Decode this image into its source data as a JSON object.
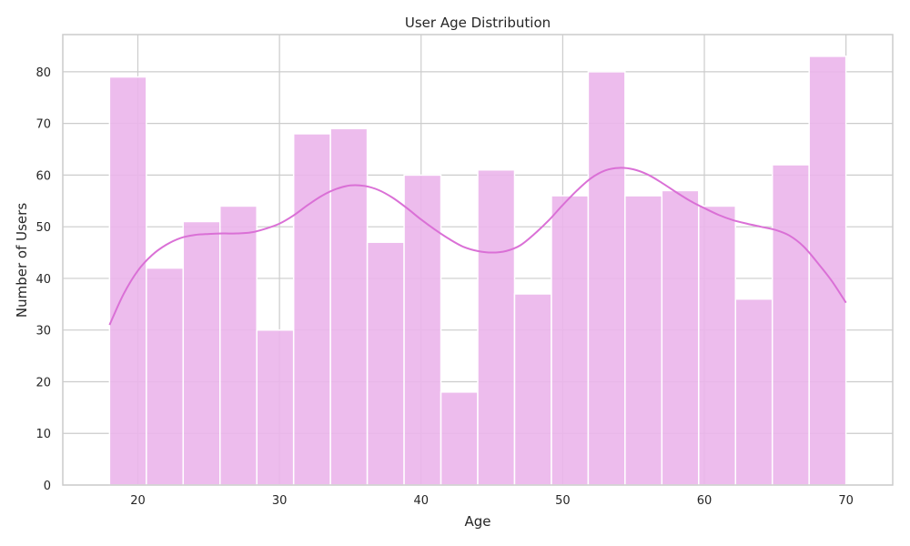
{
  "chart_data": {
    "type": "bar",
    "title": "User Age Distribution",
    "xlabel": "Age",
    "ylabel": "Number of Users",
    "xlim": [
      14.7,
      73.3
    ],
    "ylim": [
      0,
      87.2
    ],
    "xticks": [
      20,
      30,
      40,
      50,
      60,
      70
    ],
    "yticks": [
      0,
      10,
      20,
      30,
      40,
      50,
      60,
      70,
      80
    ],
    "bins": {
      "edges": [
        18,
        20.6,
        23.2,
        25.8,
        28.4,
        31,
        33.6,
        36.2,
        38.8,
        41.4,
        44,
        46.6,
        49.2,
        51.8,
        54.4,
        57,
        59.6,
        62.2,
        64.8,
        67.4,
        70
      ],
      "counts": [
        79,
        42,
        51,
        54,
        30,
        68,
        69,
        47,
        60,
        18,
        61,
        37,
        56,
        80,
        56,
        57,
        54,
        36,
        62,
        83
      ]
    },
    "kde": {
      "x": [
        18,
        19,
        20,
        21,
        22,
        23,
        24,
        25,
        26,
        27,
        28,
        29,
        30,
        31,
        32,
        33,
        34,
        35,
        36,
        37,
        38,
        39,
        40,
        41,
        42,
        43,
        44,
        45,
        46,
        47,
        48,
        49,
        50,
        51,
        52,
        53,
        54,
        55,
        56,
        57,
        58,
        59,
        60,
        61,
        62,
        63,
        64,
        65,
        66,
        67,
        68,
        69,
        70
      ],
      "y": [
        31,
        37,
        41.5,
        44.5,
        46.5,
        47.8,
        48.4,
        48.6,
        48.7,
        48.7,
        48.9,
        49.6,
        50.6,
        52.2,
        54.2,
        56,
        57.3,
        58,
        57.9,
        57.1,
        55.6,
        53.6,
        51.4,
        49.4,
        47.6,
        46.1,
        45.3,
        45,
        45.3,
        46.4,
        48.6,
        51.2,
        54.2,
        57,
        59.4,
        60.9,
        61.4,
        61.1,
        60.1,
        58.5,
        56.7,
        55,
        53.6,
        52.3,
        51.3,
        50.6,
        50,
        49.4,
        48.3,
        46.2,
        43,
        39.5,
        35.3
      ]
    },
    "colors": {
      "bar_fill": "#ebb5eb",
      "bar_edge": "#ffffff",
      "kde_line": "#da70d6",
      "grid": "#cccccc",
      "text": "#262626"
    },
    "grid": true,
    "legend": "none"
  }
}
